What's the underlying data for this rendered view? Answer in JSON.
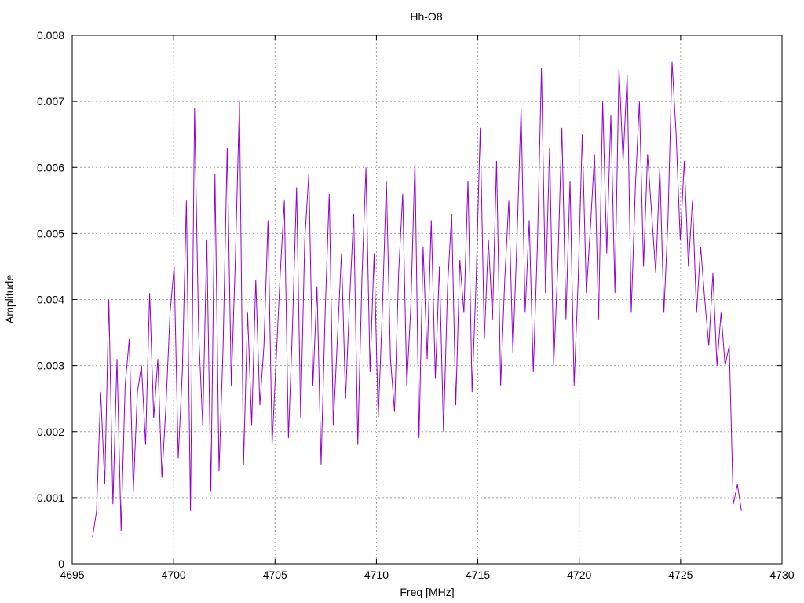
{
  "chart_data": {
    "type": "line",
    "title": "Hh-O8",
    "xlabel": "Freq [MHz]",
    "ylabel": "Amplitude",
    "xlim": [
      4695,
      4730
    ],
    "ylim": [
      0,
      0.008
    ],
    "xticks": [
      4695,
      4700,
      4705,
      4710,
      4715,
      4720,
      4725,
      4730
    ],
    "xtick_labels": [
      "4695",
      "4700",
      "4705",
      "4710",
      "4715",
      "4720",
      "4725",
      "4730"
    ],
    "yticks": [
      0,
      0.001,
      0.002,
      0.003,
      0.004,
      0.005,
      0.006,
      0.007,
      0.008
    ],
    "ytick_labels": [
      "0",
      "0.001",
      "0.002",
      "0.003",
      "0.004",
      "0.005",
      "0.006",
      "0.007",
      "0.008"
    ],
    "grid": true,
    "legend": "none",
    "color": "#9400d3",
    "series": [
      {
        "x_start": 4696.0,
        "x_end": 4728.0,
        "values": [
          0.0004,
          0.0008,
          0.0026,
          0.0012,
          0.004,
          0.0009,
          0.0031,
          0.0005,
          0.0027,
          0.0034,
          0.0011,
          0.0026,
          0.003,
          0.0018,
          0.0041,
          0.0022,
          0.0031,
          0.0013,
          0.0024,
          0.0038,
          0.0045,
          0.0016,
          0.0029,
          0.0055,
          0.0008,
          0.0069,
          0.0035,
          0.0021,
          0.0049,
          0.0011,
          0.0059,
          0.0014,
          0.0033,
          0.0063,
          0.0027,
          0.0046,
          0.007,
          0.0015,
          0.0038,
          0.0021,
          0.0043,
          0.0024,
          0.0033,
          0.0052,
          0.0018,
          0.0031,
          0.0044,
          0.0055,
          0.0019,
          0.0036,
          0.0057,
          0.0022,
          0.0049,
          0.0059,
          0.0027,
          0.0042,
          0.0015,
          0.0038,
          0.0056,
          0.0021,
          0.0034,
          0.0047,
          0.0025,
          0.004,
          0.0053,
          0.0018,
          0.0043,
          0.006,
          0.0029,
          0.0047,
          0.0022,
          0.0038,
          0.0058,
          0.0031,
          0.0023,
          0.0044,
          0.0056,
          0.0027,
          0.0039,
          0.0061,
          0.0019,
          0.0048,
          0.0031,
          0.0052,
          0.0028,
          0.0045,
          0.002,
          0.0042,
          0.0053,
          0.0024,
          0.0046,
          0.0038,
          0.0058,
          0.0026,
          0.0043,
          0.0066,
          0.0034,
          0.0049,
          0.0037,
          0.0061,
          0.0027,
          0.0043,
          0.0055,
          0.0032,
          0.0049,
          0.0069,
          0.0038,
          0.0052,
          0.0029,
          0.0048,
          0.0075,
          0.0041,
          0.0063,
          0.003,
          0.0045,
          0.0066,
          0.0037,
          0.0058,
          0.0027,
          0.0043,
          0.0065,
          0.0041,
          0.0051,
          0.0062,
          0.0037,
          0.007,
          0.0047,
          0.0068,
          0.0041,
          0.0075,
          0.0061,
          0.0074,
          0.0038,
          0.0057,
          0.007,
          0.0045,
          0.0062,
          0.0053,
          0.0044,
          0.006,
          0.0038,
          0.0052,
          0.0076,
          0.0065,
          0.0049,
          0.0061,
          0.0045,
          0.0055,
          0.0038,
          0.0048,
          0.004,
          0.0033,
          0.0044,
          0.003,
          0.0038,
          0.003,
          0.0033,
          0.0009,
          0.0012,
          0.0008
        ]
      }
    ]
  }
}
